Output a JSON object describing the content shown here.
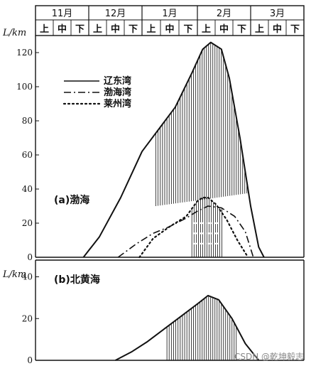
{
  "chart_data": [
    {
      "type": "line",
      "panel_label": "(a)渤海",
      "ylabel": "L/km",
      "ylim": [
        0,
        130
      ],
      "yticks": [
        0,
        20,
        40,
        60,
        80,
        100,
        120
      ],
      "months": [
        "11月",
        "12月",
        "1月",
        "2月",
        "3月"
      ],
      "decades": [
        "上",
        "中",
        "下",
        "上",
        "中",
        "下",
        "上",
        "中",
        "下",
        "上",
        "中",
        "下",
        "上",
        "中",
        "下"
      ],
      "x_unit": "month index (0 = 11月上旬 start, 5 = 3月 end)",
      "xlim": [
        0,
        5
      ],
      "legend": {
        "position": "top-left"
      },
      "series": [
        {
          "name": "辽东湾",
          "style": "solid",
          "x": [
            0.9,
            1.2,
            1.6,
            2.0,
            2.3,
            2.6,
            2.9,
            3.1,
            3.25,
            3.45,
            3.6,
            3.8,
            4.0,
            4.15,
            4.25
          ],
          "y": [
            0,
            12,
            35,
            62,
            75,
            88,
            108,
            122,
            126,
            122,
            105,
            70,
            30,
            6,
            0
          ]
        },
        {
          "name": "渤海湾",
          "style": "dash-dot",
          "x": [
            1.55,
            1.9,
            2.2,
            2.5,
            2.8,
            3.0,
            3.2,
            3.45,
            3.7,
            3.9,
            4.05
          ],
          "y": [
            0,
            8,
            14,
            18,
            23,
            27,
            30,
            29,
            24,
            15,
            0
          ]
        },
        {
          "name": "莱州湾",
          "style": "dotted",
          "x": [
            1.95,
            2.2,
            2.5,
            2.8,
            3.0,
            3.1,
            3.2,
            3.35,
            3.55,
            3.75,
            3.95
          ],
          "y": [
            0,
            11,
            18,
            24,
            33,
            35,
            35,
            31,
            22,
            10,
            0
          ]
        }
      ],
      "hatched_ranges": [
        {
          "x": [
            2.25,
            4.05
          ],
          "y_bottom": [
            30,
            38
          ]
        },
        {
          "x": [
            2.9,
            3.5
          ],
          "y_bottom": [
            0,
            0
          ]
        }
      ]
    },
    {
      "type": "line",
      "panel_label": "(b)北黄海",
      "ylabel": "L/km",
      "ylim": [
        0,
        48
      ],
      "yticks": [
        0,
        20,
        40
      ],
      "x_unit": "month index (0 = 11月上旬 start, 5 = 3月 end)",
      "xlim": [
        0,
        5
      ],
      "series": [
        {
          "style": "solid",
          "x": [
            1.5,
            1.8,
            2.1,
            2.4,
            2.7,
            3.0,
            3.2,
            3.4,
            3.65,
            3.9,
            4.15
          ],
          "y": [
            0,
            4,
            9,
            15,
            21,
            27,
            31,
            29,
            20,
            8,
            0
          ]
        }
      ],
      "hatched_ranges": [
        {
          "x": [
            2.45,
            3.75
          ],
          "y_bottom": [
            0,
            0
          ]
        }
      ]
    }
  ],
  "watermark": "CSDN @乾坤毅志"
}
